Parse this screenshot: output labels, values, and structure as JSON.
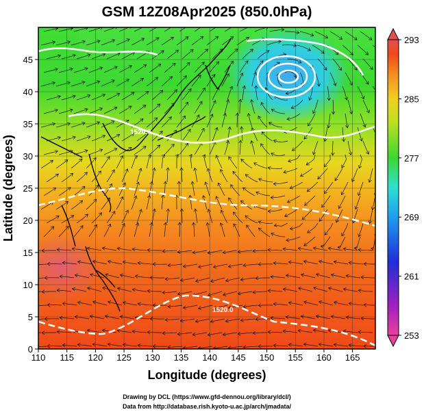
{
  "title": "GSM 12Z08Apr2025 (850.0hPa)",
  "x_axis": {
    "label": "Longitude (degrees)",
    "ticks": [
      "110",
      "115",
      "120",
      "125",
      "130",
      "135",
      "140",
      "145",
      "150",
      "155",
      "160",
      "165"
    ],
    "range": [
      110,
      169
    ]
  },
  "y_axis": {
    "label": "Latitude  (degrees)",
    "ticks": [
      "0",
      "5",
      "10",
      "15",
      "20",
      "25",
      "30",
      "35",
      "40",
      "45"
    ],
    "range": [
      0,
      50
    ]
  },
  "colorbar": {
    "labels": [
      "293",
      "285",
      "277",
      "269",
      "261",
      "253"
    ],
    "min": 253,
    "max": 293,
    "colors": [
      "#e8419c",
      "#a020c0",
      "#1e2fd8",
      "#1e9ef0",
      "#2ee0d0",
      "#3cd830",
      "#bde020",
      "#f0d020",
      "#f59020",
      "#f04a1a",
      "#e05050"
    ]
  },
  "contour_labels": [
    "1520.0",
    "1520.0"
  ],
  "credits": {
    "line1": "Drawing by DCL (https://www.gfd-dennou.org/library/dcl/)",
    "line2": "Data from http://database.rish.kyoto-u.ac.jp/arch/jmadata/"
  }
}
